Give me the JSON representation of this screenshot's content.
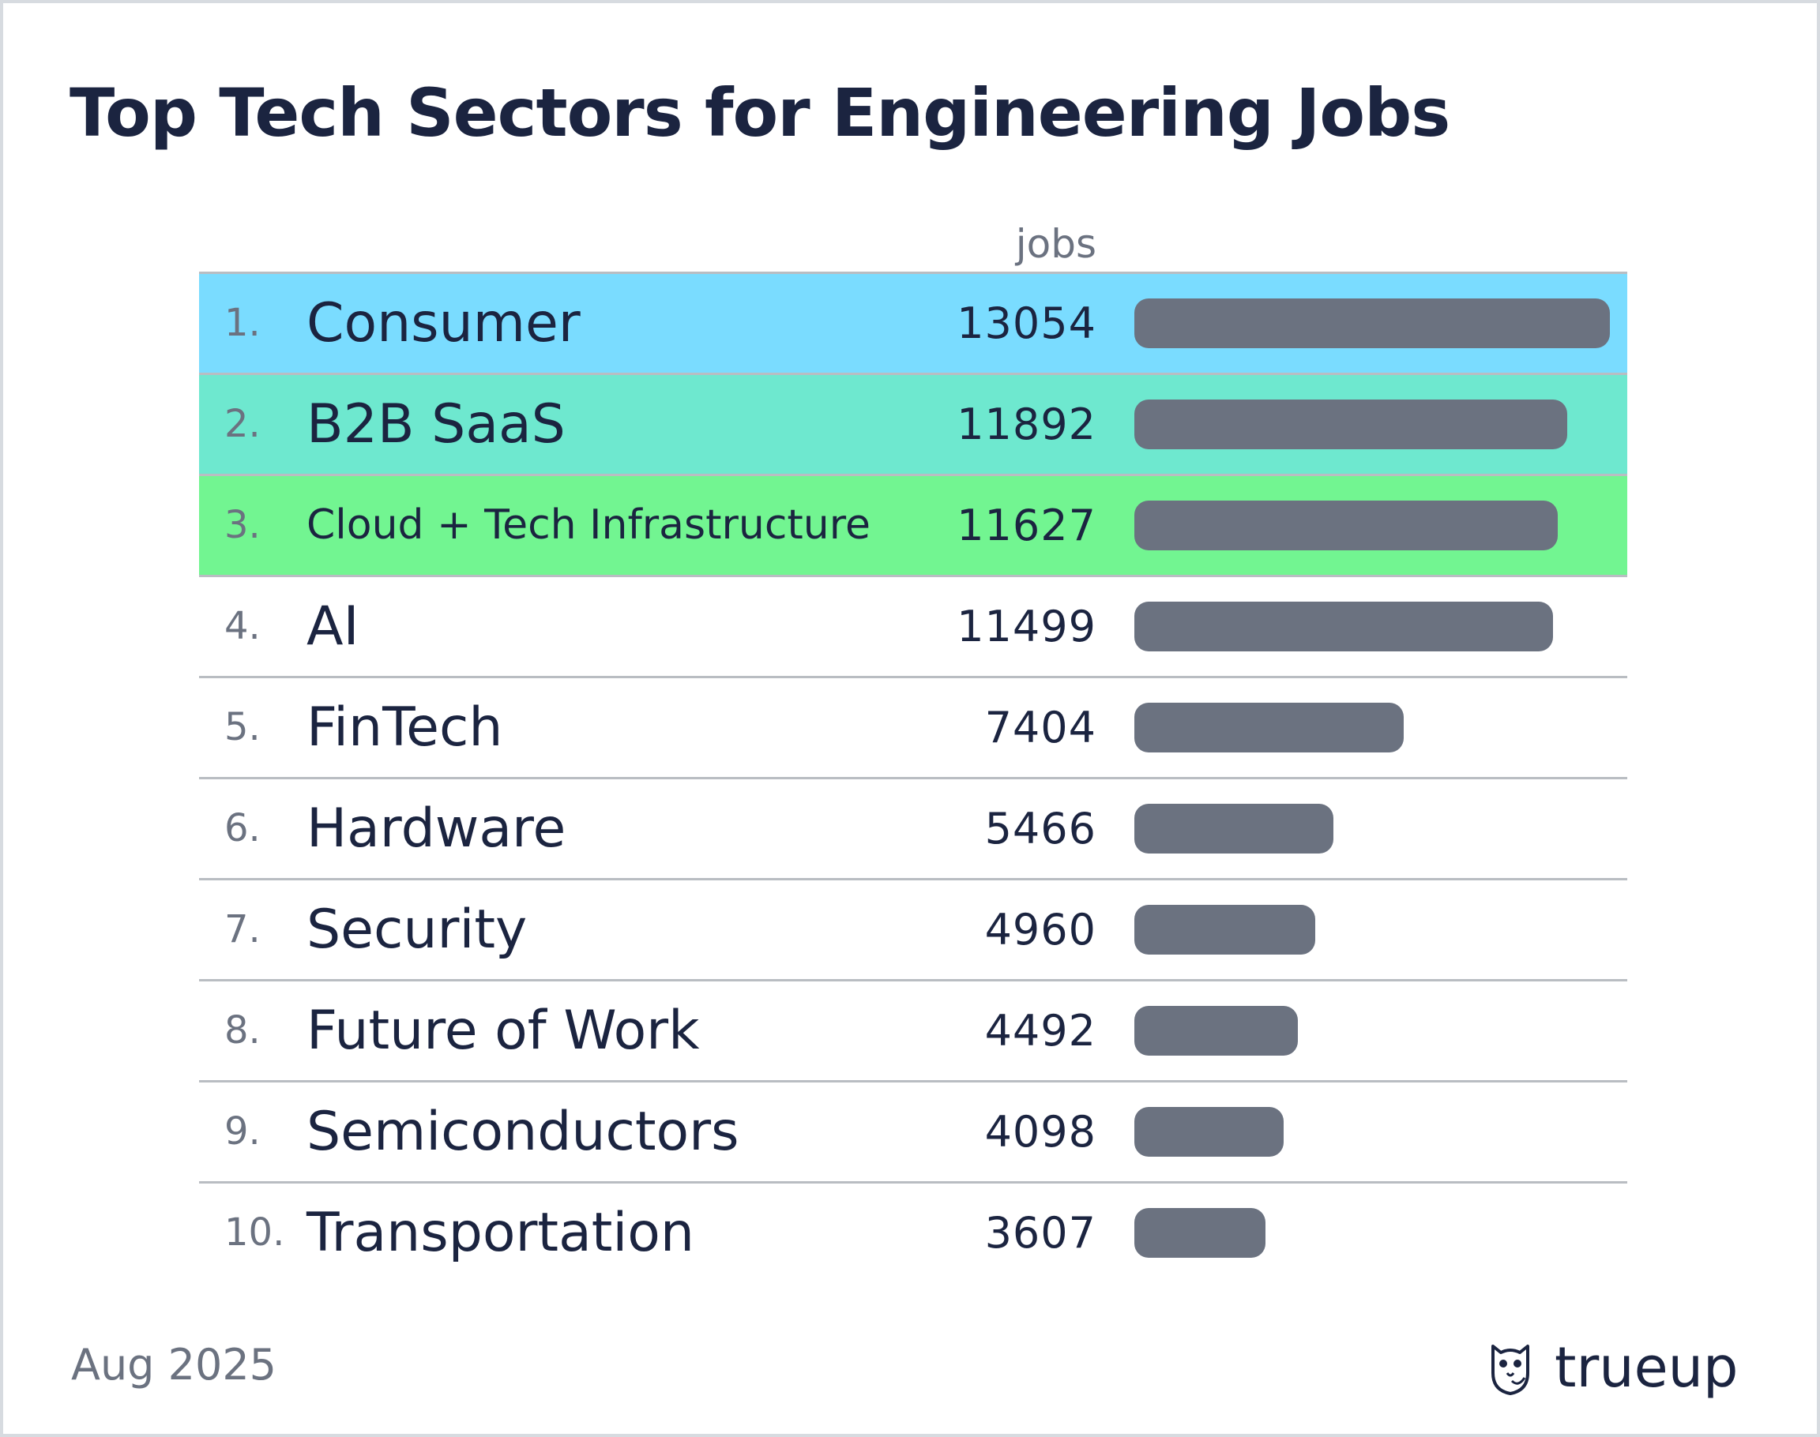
{
  "chart_data": {
    "type": "bar",
    "title": "Top Tech Sectors for Engineering Jobs",
    "value_header": "jobs",
    "categories": [
      "Consumer",
      "B2B SaaS",
      "Cloud + Tech Infrastructure",
      "AI",
      "FinTech",
      "Hardware",
      "Security",
      "Future of Work",
      "Semiconductors",
      "Transportation"
    ],
    "ranks": [
      "1.",
      "2.",
      "3.",
      "4.",
      "5.",
      "6.",
      "7.",
      "8.",
      "9.",
      "10."
    ],
    "values": [
      13054,
      11892,
      11627,
      11499,
      7404,
      5466,
      4960,
      4492,
      4098,
      3607
    ],
    "value_labels": [
      "13054",
      "11892",
      "11627",
      "11499",
      "7404",
      "5466",
      "4960",
      "4492",
      "4098",
      "3607"
    ],
    "highlight_colors": [
      "#7adcff",
      "#6ee8cf",
      "#72f591",
      null,
      null,
      null,
      null,
      null,
      null,
      null
    ],
    "bar_color": "#6b7280",
    "xlim": [
      0,
      13054
    ],
    "grid": false
  },
  "footer": {
    "date": "Aug 2025",
    "brand": "trueup",
    "brand_icon": "owl-logo-icon"
  }
}
